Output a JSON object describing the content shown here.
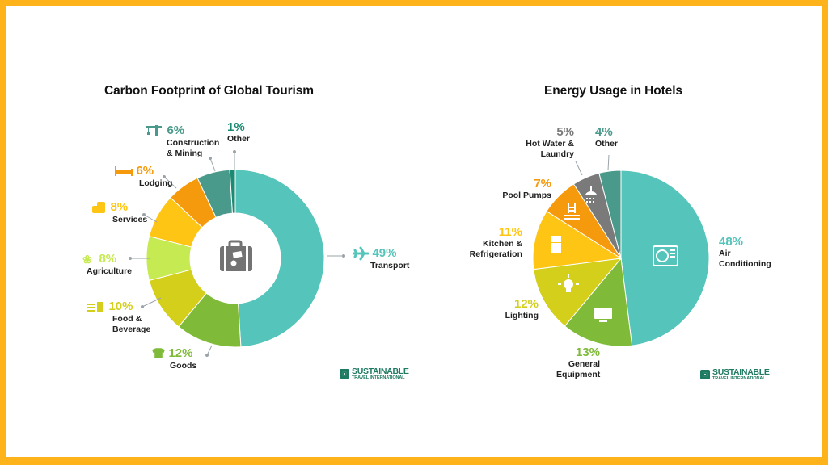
{
  "colors": {
    "frame": "#FFB31A",
    "background": "#FFFFFF",
    "teal": "#55C4BA",
    "teal_dark": "#4A9A8C",
    "teal_darker": "#1A8A72",
    "orange": "#F59A0C",
    "amber": "#FFC514",
    "lime_light": "#C6EA52",
    "yellow_green": "#D3CF1A",
    "green": "#7FBA38",
    "gray": "#7A7A7A",
    "brand_green": "#1E7A60"
  },
  "chart_data": [
    {
      "type": "pie",
      "variant": "donut",
      "title": "Carbon Footprint of Global Tourism",
      "center_icon": "suitcase-icon",
      "categories": [
        "Transport",
        "Goods",
        "Food & Beverage",
        "Agriculture",
        "Services",
        "Lodging",
        "Construction & Mining",
        "Other"
      ],
      "values": [
        49,
        12,
        10,
        8,
        8,
        6,
        6,
        1
      ],
      "unit": "%",
      "slice_colors": [
        "#55C4BA",
        "#7FBA38",
        "#D3CF1A",
        "#C6EA52",
        "#FFC514",
        "#F59A0C",
        "#4A9A8C",
        "#1A8A72"
      ],
      "icons": [
        "airplane-icon",
        "tshirt-icon",
        "food-drink-icon",
        "wheat-icon",
        "services-icon",
        "bed-icon",
        "crane-icon",
        null
      ]
    },
    {
      "type": "pie",
      "title": "Energy Usage in Hotels",
      "categories": [
        "Air Conditioning",
        "General Equipment",
        "Lighting",
        "Kitchen & Refrigeration",
        "Pool Pumps",
        "Hot Water & Laundry",
        "Other"
      ],
      "values": [
        48,
        13,
        12,
        11,
        7,
        5,
        4
      ],
      "unit": "%",
      "slice_colors": [
        "#55C4BA",
        "#7FBA38",
        "#D3CF1A",
        "#FFC514",
        "#F59A0C",
        "#7A7A7A",
        "#4A9A8C"
      ],
      "icons": [
        "air-conditioner-icon",
        "monitor-icon",
        "lightbulb-icon",
        "fridge-icon",
        "pool-ladder-icon",
        "shower-icon",
        null
      ]
    }
  ],
  "left": {
    "title": "Carbon Footprint of Global Tourism",
    "labels": {
      "transport": {
        "pct": "49%",
        "name": "Transport"
      },
      "goods": {
        "pct": "12%",
        "name": "Goods"
      },
      "food": {
        "pct": "10%",
        "name1": "Food &",
        "name2": "Beverage"
      },
      "agriculture": {
        "pct": "8%",
        "name": "Agriculture"
      },
      "services": {
        "pct": "8%",
        "name": "Services"
      },
      "lodging": {
        "pct": "6%",
        "name": "Lodging"
      },
      "construction": {
        "pct": "6%",
        "name1": "Construction",
        "name2": "& Mining"
      },
      "other": {
        "pct": "1%",
        "name": "Other"
      }
    }
  },
  "right": {
    "title": "Energy Usage in Hotels",
    "labels": {
      "ac": {
        "pct": "48%",
        "name1": "Air",
        "name2": "Conditioning"
      },
      "equipment": {
        "pct": "13%",
        "name1": "General",
        "name2": "Equipment"
      },
      "lighting": {
        "pct": "12%",
        "name": "Lighting"
      },
      "kitchen": {
        "pct": "11%",
        "name1": "Kitchen &",
        "name2": "Refrigeration"
      },
      "pool": {
        "pct": "7%",
        "name": "Pool Pumps"
      },
      "hotwater": {
        "pct": "5%",
        "name1": "Hot Water &",
        "name2": "Laundry"
      },
      "other": {
        "pct": "4%",
        "name": "Other"
      }
    }
  },
  "logo": {
    "line1": "SUSTAINABLE",
    "line2": "TRAVEL INTERNATIONAL"
  }
}
